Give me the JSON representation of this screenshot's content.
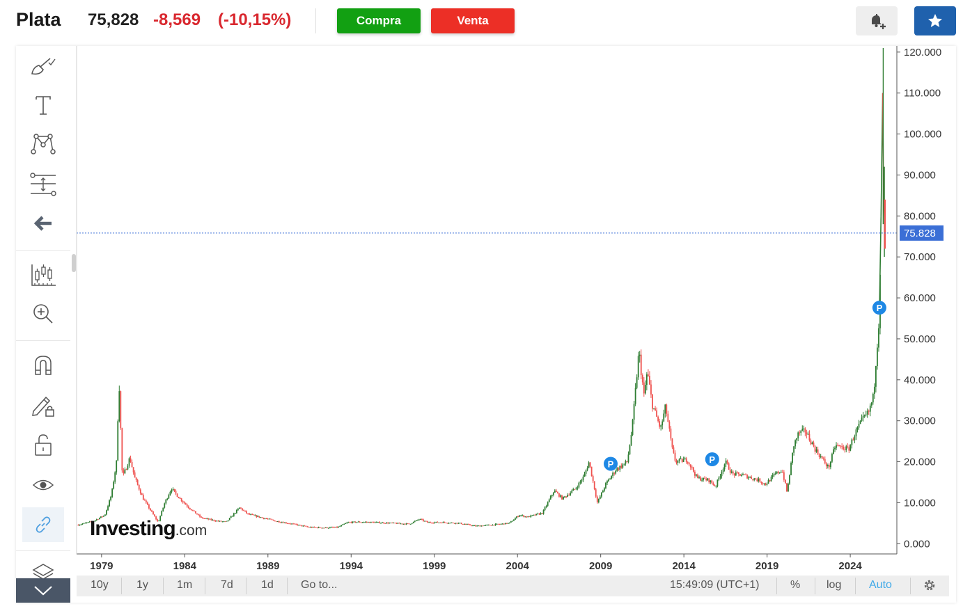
{
  "header": {
    "title": "Plata",
    "price": "75,828",
    "change": "-8,569",
    "change_pct": "(-10,15%)",
    "buy_label": "Compra",
    "sell_label": "Venta"
  },
  "colors": {
    "up": "#26a69a",
    "up_alt": "#2e7d32",
    "down": "#ef5350",
    "accent": "#1e88e5",
    "buy": "#12a012",
    "sell": "#ec2f26",
    "star_button": "#1f61ad"
  },
  "icons": {
    "brush": "brush-icon",
    "text": "text-icon",
    "pattern": "pattern-icon",
    "measure": "measure-icon",
    "back": "arrow-left-icon",
    "chart_type": "candles-icon",
    "zoom": "zoom-in-icon",
    "magnet": "magnet-icon",
    "lock_draw": "pencil-lock-icon",
    "lock": "unlock-icon",
    "eye": "eye-icon",
    "link": "link-icon",
    "layers": "layers-icon",
    "alert": "bell-plus-icon",
    "star": "star-icon",
    "settings": "gear-icon",
    "expand": "chevron-down-icon"
  },
  "watermark": {
    "brand": "Investing",
    "suffix": ".com"
  },
  "bottom_bar": {
    "ranges": [
      "10y",
      "1y",
      "1m",
      "7d",
      "1d"
    ],
    "goto": "Go to...",
    "time": "15:49:09 (UTC+1)",
    "percent": "%",
    "log": "log",
    "auto": "Auto"
  },
  "chart_data": {
    "type": "candlestick",
    "x_ticks": [
      "1979",
      "1984",
      "1989",
      "1994",
      "1999",
      "2004",
      "2009",
      "2014",
      "2019",
      "2024"
    ],
    "y_ticks": [
      "0.000",
      "10.000",
      "20.000",
      "30.000",
      "40.000",
      "50.000",
      "60.000",
      "70.000",
      "80.000",
      "90.000",
      "100.000",
      "110.000",
      "120.000"
    ],
    "ylim": [
      -2.5,
      121.5
    ],
    "xlim": [
      1977.5,
      2026.8
    ],
    "current_price": 75.828,
    "current_price_label": "75.828",
    "markers": [
      {
        "label": "P",
        "x": 2009.6,
        "y": 19.5
      },
      {
        "label": "P",
        "x": 2015.7,
        "y": 20.6
      },
      {
        "label": "P",
        "x": 2025.75,
        "y": 57.6
      }
    ],
    "price_path": [
      [
        1977.6,
        4.6
      ],
      [
        1978.5,
        5.5
      ],
      [
        1979.2,
        7.0
      ],
      [
        1979.6,
        12.0
      ],
      [
        1979.9,
        20.0
      ],
      [
        1980.05,
        40.0
      ],
      [
        1980.25,
        16.0
      ],
      [
        1980.7,
        21.0
      ],
      [
        1981.0,
        16.0
      ],
      [
        1981.5,
        11.0
      ],
      [
        1982.4,
        5.2
      ],
      [
        1982.8,
        10.0
      ],
      [
        1983.2,
        13.5
      ],
      [
        1983.6,
        11.5
      ],
      [
        1984.2,
        9.0
      ],
      [
        1985.0,
        6.3
      ],
      [
        1986.0,
        5.5
      ],
      [
        1986.5,
        5.3
      ],
      [
        1987.3,
        8.8
      ],
      [
        1987.8,
        7.2
      ],
      [
        1988.5,
        6.5
      ],
      [
        1989.5,
        5.5
      ],
      [
        1990.5,
        4.8
      ],
      [
        1991.5,
        4.0
      ],
      [
        1992.5,
        3.9
      ],
      [
        1993.2,
        4.0
      ],
      [
        1993.8,
        5.2
      ],
      [
        1994.5,
        5.3
      ],
      [
        1995.5,
        5.2
      ],
      [
        1996.5,
        5.0
      ],
      [
        1997.5,
        4.8
      ],
      [
        1998.1,
        6.0
      ],
      [
        1998.6,
        5.2
      ],
      [
        1999.5,
        5.2
      ],
      [
        2000.5,
        5.0
      ],
      [
        2001.5,
        4.3
      ],
      [
        2002.5,
        4.6
      ],
      [
        2003.5,
        5.0
      ],
      [
        2004.1,
        7.0
      ],
      [
        2004.6,
        6.5
      ],
      [
        2005.5,
        7.5
      ],
      [
        2006.2,
        13.0
      ],
      [
        2006.7,
        11.0
      ],
      [
        2007.5,
        13.5
      ],
      [
        2008.0,
        16.5
      ],
      [
        2008.3,
        20.0
      ],
      [
        2008.8,
        10.0
      ],
      [
        2009.3,
        14.5
      ],
      [
        2009.9,
        18.0
      ],
      [
        2010.6,
        20.0
      ],
      [
        2010.9,
        28.5
      ],
      [
        2011.3,
        47.0
      ],
      [
        2011.6,
        36.0
      ],
      [
        2011.8,
        42.0
      ],
      [
        2012.1,
        34.0
      ],
      [
        2012.6,
        28.0
      ],
      [
        2012.9,
        33.5
      ],
      [
        2013.3,
        23.0
      ],
      [
        2013.5,
        20.0
      ],
      [
        2014.2,
        20.5
      ],
      [
        2014.8,
        16.0
      ],
      [
        2015.5,
        15.5
      ],
      [
        2015.9,
        14.0
      ],
      [
        2016.5,
        20.0
      ],
      [
        2016.9,
        17.0
      ],
      [
        2017.5,
        16.8
      ],
      [
        2018.5,
        15.5
      ],
      [
        2018.9,
        14.5
      ],
      [
        2019.5,
        17.0
      ],
      [
        2019.9,
        18.0
      ],
      [
        2020.2,
        12.5
      ],
      [
        2020.6,
        24.0
      ],
      [
        2020.9,
        27.0
      ],
      [
        2021.3,
        27.5
      ],
      [
        2021.9,
        23.0
      ],
      [
        2022.7,
        18.5
      ],
      [
        2023.1,
        24.0
      ],
      [
        2023.5,
        23.5
      ],
      [
        2023.9,
        23.0
      ],
      [
        2024.3,
        27.0
      ],
      [
        2024.7,
        30.0
      ],
      [
        2025.1,
        32.0
      ],
      [
        2025.4,
        36.0
      ],
      [
        2025.6,
        48.0
      ],
      [
        2025.75,
        56.0
      ],
      [
        2025.85,
        80.0
      ],
      [
        2025.95,
        110.0
      ],
      [
        2026.0,
        85.0
      ],
      [
        2026.1,
        75.8
      ]
    ]
  }
}
